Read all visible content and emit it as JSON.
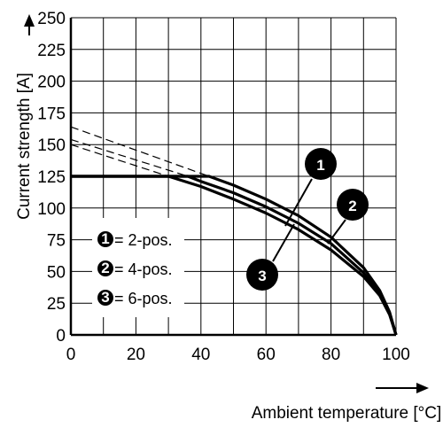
{
  "chart_data": {
    "type": "line",
    "xlabel": "Ambient temperature [°C]",
    "ylabel": "Current strength [A]",
    "xlim": [
      0,
      100
    ],
    "ylim": [
      0,
      250
    ],
    "x_ticks": [
      0,
      20,
      40,
      60,
      80,
      100
    ],
    "y_ticks": [
      0,
      25,
      50,
      75,
      100,
      125,
      150,
      175,
      200,
      225,
      250
    ],
    "x_tick_labels": [
      "0",
      "20",
      "40",
      "60",
      "80",
      "100"
    ],
    "y_tick_labels": [
      "0",
      "25",
      "50",
      "75",
      "100",
      "125",
      "150",
      "175",
      "200",
      "225",
      "250"
    ],
    "grid": true,
    "legend_position": "left",
    "series": [
      {
        "name": "2-pos.",
        "marker": "1",
        "points": [
          [
            0,
            125
          ],
          [
            42.5,
            125
          ],
          [
            50,
            118
          ],
          [
            60,
            107
          ],
          [
            70,
            94
          ],
          [
            80,
            77
          ],
          [
            90,
            53
          ],
          [
            95,
            35
          ],
          [
            98,
            18
          ],
          [
            100,
            0
          ]
        ]
      },
      {
        "name": "4-pos.",
        "marker": "2",
        "points": [
          [
            0,
            125
          ],
          [
            36,
            125
          ],
          [
            40,
            121
          ],
          [
            50,
            112
          ],
          [
            60,
            101
          ],
          [
            70,
            88
          ],
          [
            80,
            72
          ],
          [
            90,
            49
          ],
          [
            95,
            33
          ],
          [
            98,
            17
          ],
          [
            100,
            0
          ]
        ]
      },
      {
        "name": "6-pos.",
        "marker": "3",
        "points": [
          [
            0,
            125
          ],
          [
            30,
            125
          ],
          [
            40,
            117
          ],
          [
            50,
            107
          ],
          [
            60,
            96
          ],
          [
            70,
            83
          ],
          [
            80,
            67
          ],
          [
            90,
            46
          ],
          [
            95,
            31
          ],
          [
            98,
            16
          ],
          [
            100,
            0
          ]
        ]
      }
    ],
    "dashed_extrapolations": [
      [
        [
          0,
          164
        ],
        [
          42.5,
          125
        ]
      ],
      [
        [
          0,
          154
        ],
        [
          36,
          125
        ]
      ],
      [
        [
          0,
          150
        ],
        [
          30,
          125
        ]
      ]
    ],
    "legend": [
      {
        "marker": "1",
        "label": "= 2-pos."
      },
      {
        "marker": "2",
        "label": "= 4-pos."
      },
      {
        "marker": "3",
        "label": "= 6-pos."
      }
    ]
  }
}
